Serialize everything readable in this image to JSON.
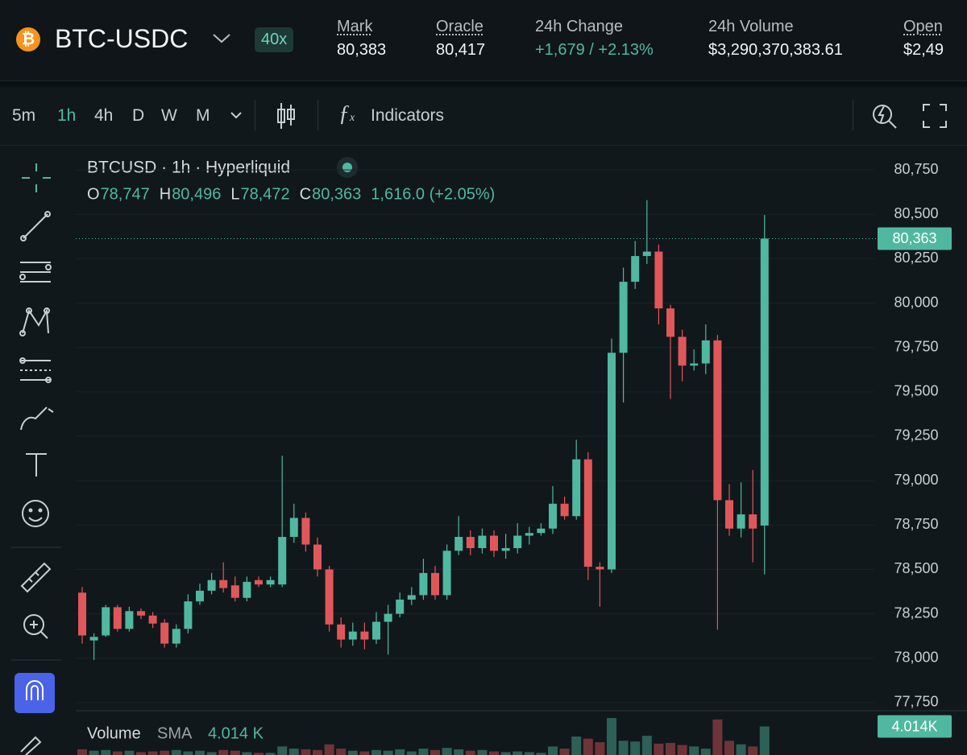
{
  "header": {
    "symbol": "BTC-USDC",
    "leverage": "40x",
    "stats": [
      {
        "label": "Mark",
        "value": "80,383"
      },
      {
        "label": "Oracle",
        "value": "80,417"
      },
      {
        "label": "24h Change",
        "value": "+1,679 / +2.13%"
      },
      {
        "label": "24h Volume",
        "value": "$3,290,370,383.61"
      },
      {
        "label": "Open",
        "value": "$2,49"
      }
    ]
  },
  "toolbar": {
    "intervals": [
      "5m",
      "1h",
      "4h",
      "D",
      "W",
      "M"
    ],
    "indicators": "Indicators"
  },
  "chart_data": {
    "type": "candlestick",
    "title": "BTCUSD · 1h · Hyperliquid",
    "ohlc_legend": [
      {
        "label": "O",
        "value": "78,747"
      },
      {
        "label": "H",
        "value": "80,496"
      },
      {
        "label": "L",
        "value": "78,472"
      },
      {
        "label": "C",
        "value": "80,363"
      }
    ],
    "change": "1,616.0 (+2.05%)",
    "categories": [
      null,
      null,
      null,
      null,
      null,
      null,
      null,
      null,
      null,
      null,
      null,
      null,
      null,
      null,
      null,
      null,
      null,
      null,
      null,
      null,
      null,
      null,
      null,
      null,
      null,
      null,
      null,
      null,
      null,
      null,
      null,
      null,
      null,
      null,
      null,
      null,
      null,
      null,
      null,
      null,
      null,
      null,
      null,
      null,
      null,
      null,
      null,
      null,
      null,
      null,
      null,
      null,
      null,
      null,
      null,
      null,
      null,
      null,
      null
    ],
    "open": [
      78369,
      78100,
      78128,
      78287,
      78165,
      78265,
      78240,
      78200,
      78082,
      78165,
      78320,
      78380,
      78440,
      78410,
      78340,
      78440,
      78415,
      78415,
      78683,
      78790,
      78640,
      78500,
      78190,
      78105,
      78150,
      78105,
      78205,
      78250,
      78330,
      78355,
      78480,
      78355,
      78605,
      78683,
      78620,
      78690,
      78605,
      78620,
      78690,
      78705,
      78730,
      78870,
      78800,
      79120,
      78515,
      78500,
      79720,
      80120,
      80265,
      80290,
      79970,
      79810,
      79648,
      79660,
      79790,
      78890,
      78730,
      78810,
      78747
    ],
    "high": [
      78401,
      78140,
      78300,
      78300,
      78290,
      78280,
      78260,
      78220,
      78190,
      78360,
      78420,
      78480,
      78540,
      78460,
      78460,
      78460,
      78460,
      79140,
      78870,
      78820,
      78680,
      78520,
      78230,
      78200,
      78200,
      78260,
      78300,
      78370,
      78400,
      78560,
      78520,
      78640,
      78800,
      78720,
      78730,
      78720,
      78700,
      78760,
      78740,
      78760,
      78970,
      78910,
      79230,
      79160,
      78540,
      79800,
      80200,
      80350,
      80580,
      80330,
      79990,
      79850,
      79740,
      79880,
      79820,
      78980,
      78990,
      79060,
      80496
    ],
    "low": [
      78082,
      77990,
      78120,
      78150,
      78150,
      78220,
      78170,
      78060,
      78060,
      78140,
      78300,
      78360,
      78370,
      78320,
      78320,
      78400,
      78400,
      78400,
      78650,
      78600,
      78460,
      78150,
      78060,
      78070,
      78050,
      78080,
      78020,
      78230,
      78300,
      78330,
      78330,
      78330,
      78580,
      78580,
      78590,
      78570,
      78560,
      78590,
      78640,
      78690,
      78700,
      78780,
      78780,
      78440,
      78290,
      78480,
      79440,
      80080,
      80220,
      79880,
      79460,
      79560,
      79620,
      79600,
      78160,
      78690,
      78680,
      78540,
      78472
    ],
    "close": [
      78128,
      78120,
      78287,
      78165,
      78265,
      78240,
      78195,
      78082,
      78165,
      78320,
      78380,
      78440,
      78395,
      78340,
      78430,
      78415,
      78440,
      78683,
      78790,
      78640,
      78500,
      78190,
      78105,
      78150,
      78105,
      78205,
      78250,
      78330,
      78355,
      78480,
      78355,
      78605,
      78683,
      78620,
      78690,
      78605,
      78620,
      78690,
      78705,
      78730,
      78870,
      78800,
      79120,
      78515,
      78500,
      79720,
      80120,
      80265,
      80290,
      79970,
      79810,
      79648,
      79660,
      79790,
      78890,
      78730,
      78810,
      78730,
      80363
    ],
    "volume": [
      800,
      600,
      700,
      500,
      600,
      400,
      500,
      600,
      700,
      500,
      600,
      400,
      700,
      600,
      400,
      300,
      300,
      1200,
      900,
      800,
      700,
      1500,
      900,
      600,
      500,
      700,
      600,
      800,
      500,
      900,
      700,
      1000,
      800,
      600,
      700,
      500,
      400,
      500,
      400,
      300,
      1200,
      900,
      2600,
      2300,
      1800,
      5200,
      2000,
      1900,
      2700,
      1600,
      1700,
      1400,
      1200,
      900,
      5000,
      2000,
      1500,
      1200,
      4014
    ],
    "ylim": [
      77695,
      80882
    ],
    "yticks": [
      {
        "value": 77750,
        "label": "77,750"
      },
      {
        "value": 78000,
        "label": "78,000"
      },
      {
        "value": 78250,
        "label": "78,250"
      },
      {
        "value": 78500,
        "label": "78,500"
      },
      {
        "value": 78750,
        "label": "78,750"
      },
      {
        "value": 79000,
        "label": "79,000"
      },
      {
        "value": 79250,
        "label": "79,250"
      },
      {
        "value": 79500,
        "label": "79,500"
      },
      {
        "value": 79750,
        "label": "79,750"
      },
      {
        "value": 80000,
        "label": "80,000"
      },
      {
        "value": 80250,
        "label": "80,250"
      },
      {
        "value": 80500,
        "label": "80,500"
      },
      {
        "value": 80750,
        "label": "80,750"
      }
    ],
    "grid": true,
    "last_price": {
      "value": 80363,
      "label": "80,363"
    },
    "up_color": "#50b8a0",
    "down_color": "#e0575a",
    "volume_ylim": [
      0,
      6000
    ],
    "volume_label": "Volume",
    "volume_sma_label": "SMA",
    "volume_sma": "4.014 K",
    "volume_last": {
      "value": 4014,
      "label": "4.014K"
    }
  }
}
